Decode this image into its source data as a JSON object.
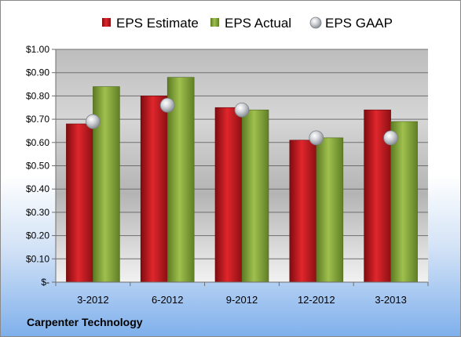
{
  "company_label": "Carpenter Technology",
  "chart_data": {
    "type": "bar",
    "categories": [
      "3-2012",
      "6-2012",
      "9-2012",
      "12-2012",
      "3-2013"
    ],
    "series": [
      {
        "name": "EPS Estimate",
        "kind": "bar",
        "color": "#c0191e",
        "values": [
          0.68,
          0.8,
          0.75,
          0.61,
          0.74
        ]
      },
      {
        "name": "EPS Actual",
        "kind": "bar",
        "color": "#8cad3d",
        "values": [
          0.84,
          0.88,
          0.74,
          0.62,
          0.69
        ]
      },
      {
        "name": "EPS GAAP",
        "kind": "scatter",
        "color": "#c9ccd1",
        "values": [
          0.69,
          0.76,
          0.74,
          0.62,
          0.62
        ]
      }
    ],
    "ylim": [
      0,
      1.0
    ],
    "yticks": [
      0,
      0.1,
      0.2,
      0.3,
      0.4,
      0.5,
      0.6,
      0.7,
      0.8,
      0.9,
      1.0
    ],
    "ytick_labels": [
      "$-",
      "$0.10",
      "$0.20",
      "$0.30",
      "$0.40",
      "$0.50",
      "$0.60",
      "$0.70",
      "$0.80",
      "$0.90",
      "$1.00"
    ],
    "grid": true,
    "legend_position": "top"
  }
}
